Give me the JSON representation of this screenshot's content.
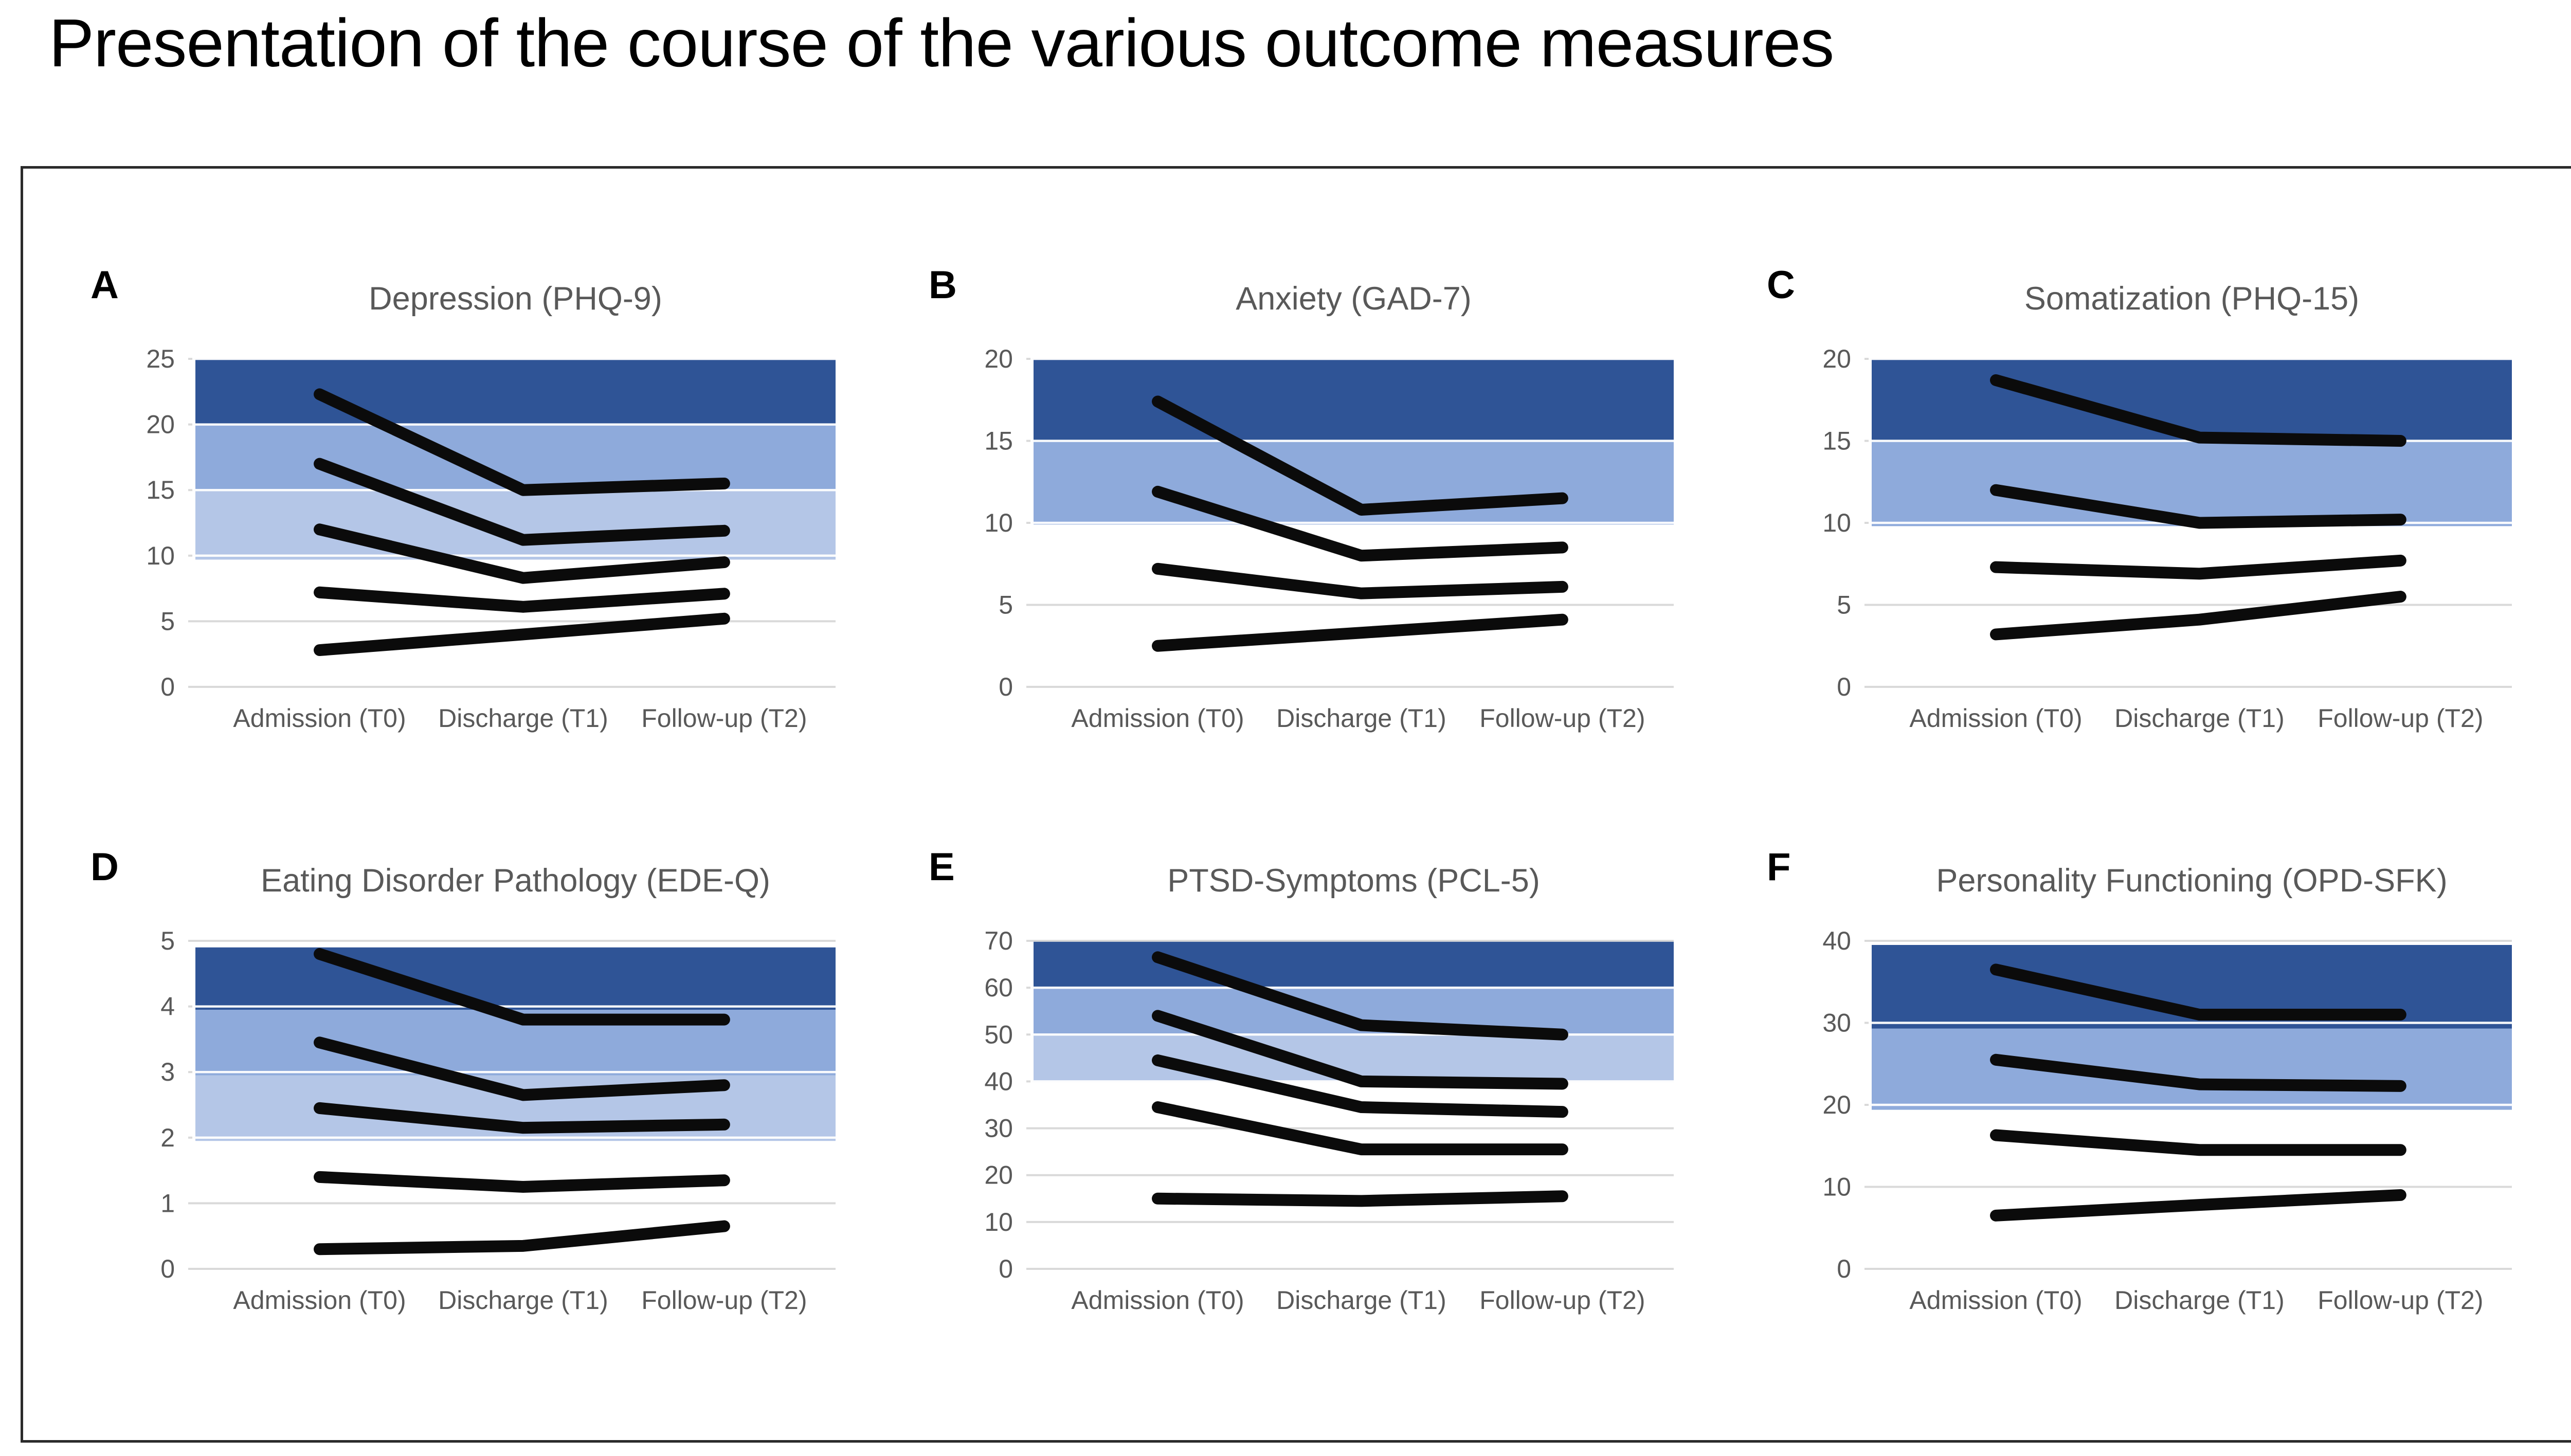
{
  "figure": {
    "title": "Presentation of the course of the various outcome measures"
  },
  "x_categories": [
    "Admission (T0)",
    "Discharge (T1)",
    "Follow-up (T2)"
  ],
  "colors": {
    "band_dark": "#2F5496",
    "band_medium": "#8EAADB",
    "band_light": "#B4C6E7",
    "gridline": "#D9D9D9",
    "band_gridline": "#FFFFFF",
    "line": "#0B0B0B",
    "text": "#595959",
    "letter": "#000000",
    "border": "#2B2B2B"
  },
  "chart_data": [
    {
      "type": "line",
      "letter": "A",
      "title": "Depression (PHQ-9)",
      "ylim": [
        0,
        25
      ],
      "yticks": [
        0,
        5,
        10,
        15,
        20,
        25
      ],
      "bands": [
        {
          "from": 9.7,
          "to": 15,
          "shade": "light"
        },
        {
          "from": 15,
          "to": 20,
          "shade": "medium"
        },
        {
          "from": 20,
          "to": 25,
          "shade": "dark"
        }
      ],
      "series": [
        [
          22.3,
          15.0,
          15.5
        ],
        [
          17.0,
          11.2,
          11.9
        ],
        [
          12.0,
          8.3,
          9.5
        ],
        [
          7.2,
          6.1,
          7.1
        ],
        [
          2.8,
          4.0,
          5.2
        ]
      ]
    },
    {
      "type": "line",
      "letter": "B",
      "title": "Anxiety (GAD-7)",
      "ylim": [
        0,
        20
      ],
      "yticks": [
        0,
        5,
        10,
        15,
        20
      ],
      "bands": [
        {
          "from": 9.9,
          "to": 15,
          "shade": "medium"
        },
        {
          "from": 15,
          "to": 20,
          "shade": "dark"
        }
      ],
      "series": [
        [
          17.4,
          10.8,
          11.5
        ],
        [
          11.9,
          8.0,
          8.5
        ],
        [
          7.2,
          5.7,
          6.1
        ],
        [
          2.5,
          3.3,
          4.1
        ]
      ]
    },
    {
      "type": "line",
      "letter": "C",
      "title": "Somatization (PHQ-15)",
      "ylim": [
        0,
        20
      ],
      "yticks": [
        0,
        5,
        10,
        15,
        20
      ],
      "bands": [
        {
          "from": 9.8,
          "to": 15,
          "shade": "medium"
        },
        {
          "from": 15,
          "to": 20,
          "shade": "dark"
        }
      ],
      "series": [
        [
          18.7,
          15.2,
          15.0
        ],
        [
          12.0,
          10.0,
          10.2
        ],
        [
          7.3,
          6.9,
          7.7
        ],
        [
          3.2,
          4.1,
          5.5
        ]
      ]
    },
    {
      "type": "line",
      "letter": "D",
      "title": "Eating Disorder Pathology (EDE-Q)",
      "ylim": [
        0,
        5
      ],
      "yticks": [
        0,
        1,
        2,
        3,
        4,
        5
      ],
      "bands": [
        {
          "from": 1.95,
          "to": 2.95,
          "shade": "light"
        },
        {
          "from": 2.95,
          "to": 3.95,
          "shade": "medium"
        },
        {
          "from": 3.95,
          "to": 4.9,
          "shade": "dark"
        }
      ],
      "series": [
        [
          4.8,
          3.8,
          3.8
        ],
        [
          3.45,
          2.65,
          2.8
        ],
        [
          2.45,
          2.15,
          2.2
        ],
        [
          1.4,
          1.25,
          1.35
        ],
        [
          0.3,
          0.35,
          0.65
        ]
      ]
    },
    {
      "type": "line",
      "letter": "E",
      "title": "PTSD-Symptoms (PCL-5)",
      "ylim": [
        0,
        70
      ],
      "yticks": [
        0,
        10,
        20,
        30,
        40,
        50,
        60,
        70
      ],
      "bands": [
        {
          "from": 39.8,
          "to": 50,
          "shade": "light"
        },
        {
          "from": 50,
          "to": 60,
          "shade": "medium"
        },
        {
          "from": 60,
          "to": 69.8,
          "shade": "dark"
        }
      ],
      "series": [
        [
          66.5,
          52.0,
          50.0
        ],
        [
          54.0,
          40.0,
          39.5
        ],
        [
          44.5,
          34.5,
          33.5
        ],
        [
          34.5,
          25.5,
          25.5
        ],
        [
          15.0,
          14.5,
          15.5
        ]
      ]
    },
    {
      "type": "line",
      "letter": "F",
      "title": "Personality Functioning (OPD-SFK)",
      "ylim": [
        0,
        40
      ],
      "yticks": [
        0,
        10,
        20,
        30,
        40
      ],
      "bands": [
        {
          "from": 19.4,
          "to": 29.3,
          "shade": "medium"
        },
        {
          "from": 29.3,
          "to": 39.5,
          "shade": "dark"
        }
      ],
      "series": [
        [
          36.5,
          31.0,
          31.0
        ],
        [
          25.5,
          22.5,
          22.3
        ],
        [
          16.3,
          14.5,
          14.5
        ],
        [
          6.5,
          7.8,
          9.0
        ]
      ]
    }
  ]
}
